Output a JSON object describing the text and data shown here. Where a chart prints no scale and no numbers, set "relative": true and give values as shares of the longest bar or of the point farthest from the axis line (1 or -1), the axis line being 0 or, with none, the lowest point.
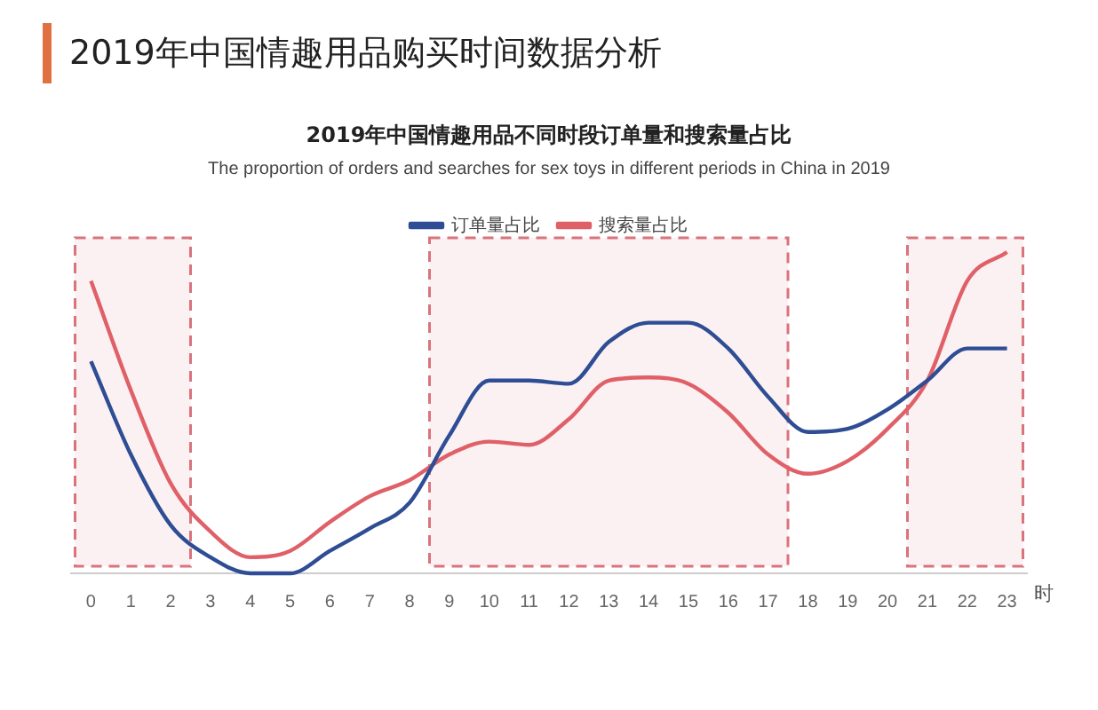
{
  "chart_data": {
    "type": "line",
    "title": "2019年中国情趣用品购买时间数据分析",
    "subtitle": "2019年中国情趣用品不同时段订单量和搜索量占比",
    "annotations": [
      "The proportion of orders and searches for sex toys in different periods in China in 2019"
    ],
    "xlabel": "时",
    "relative": true,
    "x": [
      0,
      1,
      2,
      3,
      4,
      5,
      6,
      7,
      8,
      9,
      10,
      11,
      12,
      13,
      14,
      15,
      16,
      17,
      18,
      19,
      20,
      21,
      22,
      23
    ],
    "xlim": [
      -0.5,
      23.5
    ],
    "xticks": [
      0,
      1,
      2,
      3,
      4,
      5,
      6,
      7,
      8,
      9,
      10,
      11,
      12,
      13,
      14,
      15,
      16,
      17,
      18,
      19,
      20,
      21,
      22,
      23
    ],
    "series": [
      {
        "name": "订单量占比",
        "color": "#2e4d94",
        "values": [
          0.66,
          0.37,
          0.15,
          0.05,
          0,
          0,
          0.07,
          0.14,
          0.22,
          0.43,
          0.6,
          0.6,
          0.59,
          0.72,
          0.78,
          0.78,
          0.7,
          0.55,
          0.44,
          0.45,
          0.51,
          0.6,
          0.7,
          0.7
        ]
      },
      {
        "name": "搜索量占比",
        "color": "#e06068",
        "values": [
          0.91,
          0.57,
          0.28,
          0.13,
          0.05,
          0.07,
          0.16,
          0.24,
          0.29,
          0.37,
          0.41,
          0.4,
          0.48,
          0.6,
          0.61,
          0.59,
          0.5,
          0.37,
          0.31,
          0.35,
          0.45,
          0.6,
          0.91,
          1
        ]
      }
    ],
    "bands": [
      {
        "axis": "x",
        "from": -0.4,
        "to": 2.5,
        "color": "#d9737c"
      },
      {
        "axis": "x",
        "from": 8.5,
        "to": 17.5,
        "color": "#d9737c"
      },
      {
        "axis": "x",
        "from": 20.5,
        "to": 23.4,
        "color": "#d9737c"
      }
    ],
    "legend": "top",
    "grid": false,
    "marker": "none",
    "line_style": "solid"
  }
}
